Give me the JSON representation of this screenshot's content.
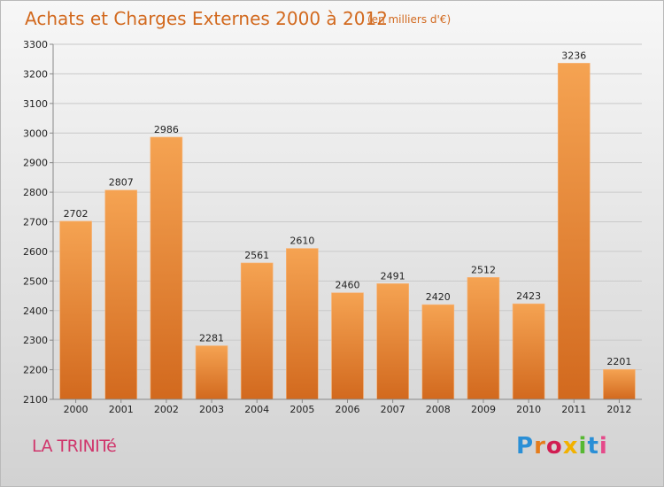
{
  "title": "Achats et Charges Externes 2000 à 2012",
  "subtitle": "(en milliers d'€)",
  "commune": "LA TRINITé",
  "logo": {
    "letters": [
      "P",
      "r",
      "o",
      "x",
      "i",
      "t",
      "i"
    ],
    "colors": [
      "#2a8fd6",
      "#e57c1b",
      "#d11d52",
      "#f2b100",
      "#57b833",
      "#2a8fd6",
      "#e54a8a"
    ]
  },
  "chart_data": {
    "type": "bar",
    "categories": [
      "2000",
      "2001",
      "2002",
      "2003",
      "2004",
      "2005",
      "2006",
      "2007",
      "2008",
      "2009",
      "2010",
      "2011",
      "2012"
    ],
    "values": [
      2702,
      2807,
      2986,
      2281,
      2561,
      2610,
      2460,
      2491,
      2420,
      2512,
      2423,
      3236,
      2201
    ],
    "ylim": [
      2100,
      3300
    ],
    "yticks": [
      2100,
      2200,
      2300,
      2400,
      2500,
      2600,
      2700,
      2800,
      2900,
      3000,
      3100,
      3200,
      3300
    ],
    "bar_color": "#ee8a35",
    "grid": true,
    "xlabel": "",
    "ylabel": ""
  }
}
